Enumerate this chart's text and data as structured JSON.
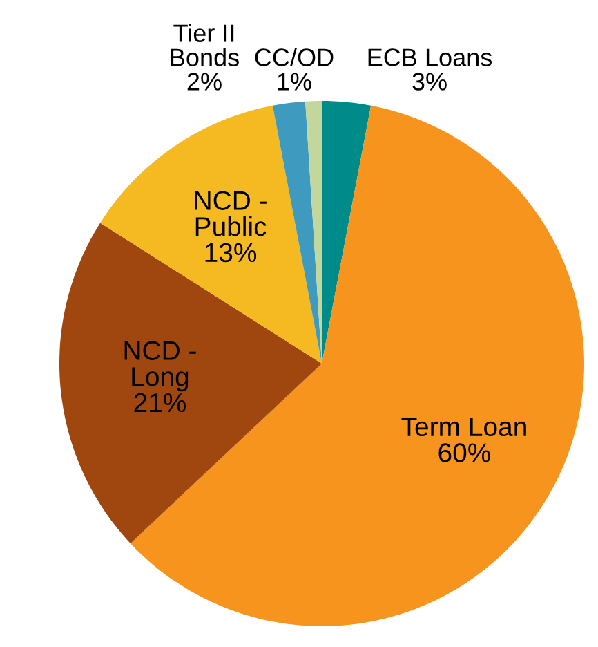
{
  "chart_data": {
    "type": "pie",
    "categories": [
      "ECB Loans",
      "Term Loan",
      "NCD -\nLong",
      "NCD -\nPublic",
      "Tier II\nBonds",
      "CC/OD"
    ],
    "values": [
      3,
      60,
      21,
      13,
      2,
      1
    ],
    "value_labels": [
      "3%",
      "60%",
      "21%",
      "13%",
      "2%",
      "1%"
    ],
    "colors": [
      "#008b8b",
      "#f7941d",
      "#a0460f",
      "#f5b921",
      "#3e9bbf",
      "#c3d69b"
    ]
  }
}
